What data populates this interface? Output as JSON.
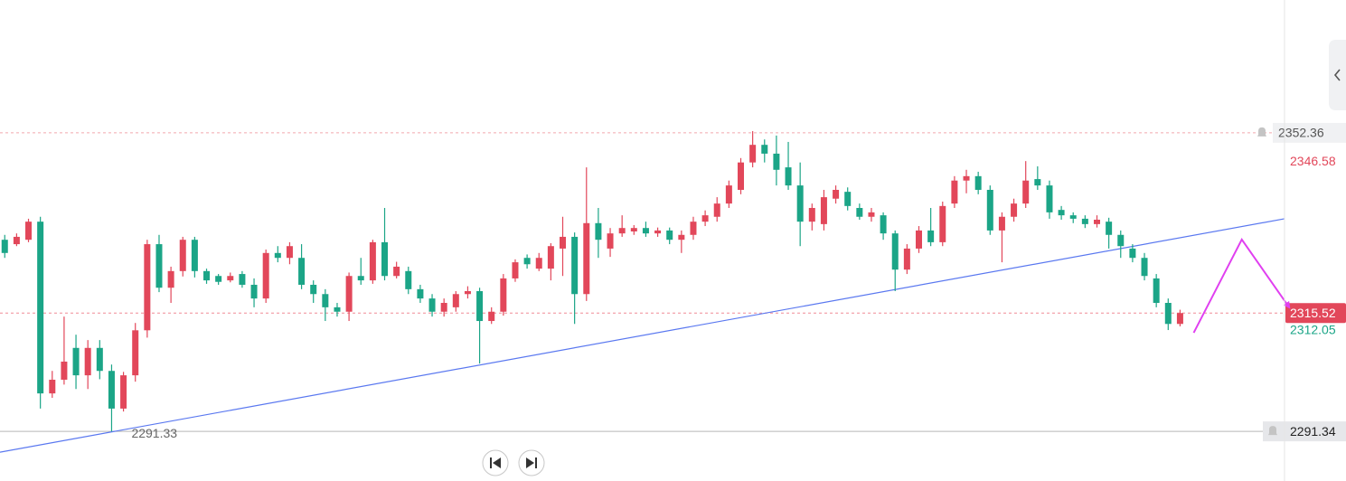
{
  "chart_data": {
    "type": "candlestick",
    "ylim": [
      2281.2,
      2379.5
    ],
    "xlim": [
      -0.4,
      107.8
    ],
    "up_color": "#e2475a",
    "down_color": "#1ba587",
    "open": [
      2330.5,
      2329.6,
      2330.5,
      2334.2,
      2299.1,
      2301.9,
      2308.4,
      2302.8,
      2308.4,
      2303.7,
      2296.0,
      2302.8,
      2312.0,
      2329.6,
      2320.7,
      2324.1,
      2330.5,
      2324.1,
      2323.1,
      2322.2,
      2323.5,
      2321.3,
      2318.5,
      2327.8,
      2326.8,
      2326.8,
      2321.3,
      2319.4,
      2316.7,
      2315.8,
      2323.1,
      2322.2,
      2330.0,
      2323.1,
      2324.1,
      2320.4,
      2318.5,
      2315.8,
      2316.7,
      2319.4,
      2320.0,
      2313.9,
      2315.8,
      2322.6,
      2326.8,
      2324.6,
      2324.6,
      2328.7,
      2331.1,
      2319.4,
      2333.9,
      2328.7,
      2331.8,
      2332.2,
      2332.9,
      2331.8,
      2332.4,
      2330.5,
      2331.5,
      2334.2,
      2335.2,
      2337.9,
      2340.7,
      2346.3,
      2349.9,
      2348.1,
      2345.3,
      2341.6,
      2334.2,
      2333.7,
      2338.9,
      2340.3,
      2337.0,
      2335.2,
      2335.5,
      2331.8,
      2324.4,
      2328.7,
      2332.4,
      2330.0,
      2337.9,
      2342.6,
      2343.5,
      2340.7,
      2332.4,
      2335.2,
      2337.9,
      2342.9,
      2341.6,
      2336.6,
      2335.5,
      2334.8,
      2333.7,
      2334.2,
      2331.5,
      2328.7,
      2326.8,
      2322.6,
      2317.6,
      2313.3
    ],
    "high": [
      2331.5,
      2331.8,
      2334.8,
      2335.2,
      2303.7,
      2314.8,
      2311.1,
      2310.0,
      2310.0,
      2305.0,
      2303.5,
      2313.5,
      2330.5,
      2331.5,
      2325.0,
      2331.1,
      2331.1,
      2324.6,
      2323.5,
      2323.8,
      2324.1,
      2322.6,
      2328.5,
      2329.2,
      2330.0,
      2329.6,
      2322.2,
      2320.4,
      2317.6,
      2323.8,
      2326.8,
      2330.5,
      2337.0,
      2326.0,
      2325.0,
      2321.3,
      2319.4,
      2318.5,
      2320.0,
      2321.0,
      2320.7,
      2316.7,
      2323.5,
      2326.5,
      2327.5,
      2327.8,
      2329.8,
      2335.2,
      2332.0,
      2345.3,
      2337.0,
      2332.9,
      2335.5,
      2333.5,
      2334.2,
      2333.0,
      2333.0,
      2332.4,
      2335.2,
      2336.5,
      2339.2,
      2342.6,
      2347.2,
      2352.7,
      2351.0,
      2351.8,
      2350.5,
      2346.3,
      2337.9,
      2340.7,
      2341.6,
      2341.2,
      2337.9,
      2337.0,
      2336.1,
      2332.4,
      2329.6,
      2333.3,
      2337.0,
      2338.3,
      2343.5,
      2344.8,
      2344.4,
      2341.6,
      2336.1,
      2338.9,
      2346.58,
      2345.5,
      2342.6,
      2337.4,
      2336.1,
      2335.5,
      2335.5,
      2335.0,
      2332.4,
      2329.6,
      2327.8,
      2323.5,
      2318.5,
      2316.2
    ],
    "low": [
      2326.8,
      2329.2,
      2330.0,
      2296.0,
      2298.2,
      2300.9,
      2300.0,
      2300.0,
      2302.0,
      2291.33,
      2295.4,
      2301.5,
      2310.5,
      2319.8,
      2317.6,
      2323.0,
      2322.8,
      2321.5,
      2321.3,
      2321.8,
      2320.7,
      2316.7,
      2317.6,
      2325.9,
      2325.5,
      2320.4,
      2317.6,
      2313.9,
      2314.8,
      2313.9,
      2321.3,
      2321.5,
      2322.2,
      2322.6,
      2319.4,
      2317.6,
      2314.8,
      2314.8,
      2315.8,
      2318.5,
      2305.2,
      2313.3,
      2315.0,
      2321.9,
      2324.6,
      2324.1,
      2322.2,
      2323.1,
      2313.3,
      2318.0,
      2326.8,
      2327.0,
      2331.1,
      2331.5,
      2331.1,
      2331.1,
      2329.6,
      2327.8,
      2330.5,
      2333.3,
      2334.2,
      2337.0,
      2339.8,
      2345.3,
      2346.3,
      2341.6,
      2340.7,
      2329.2,
      2332.4,
      2332.4,
      2337.9,
      2336.5,
      2334.6,
      2334.2,
      2330.5,
      2320.0,
      2323.5,
      2327.8,
      2329.2,
      2329.2,
      2337.0,
      2340.0,
      2339.8,
      2331.5,
      2325.9,
      2334.2,
      2337.0,
      2340.7,
      2334.8,
      2334.6,
      2333.9,
      2332.9,
      2333.0,
      2328.7,
      2326.8,
      2325.9,
      2322.2,
      2316.7,
      2312.05,
      2312.8
    ],
    "close": [
      2327.8,
      2331.1,
      2334.2,
      2299.1,
      2301.9,
      2305.6,
      2302.8,
      2308.4,
      2303.7,
      2296.0,
      2302.8,
      2312.0,
      2329.6,
      2320.7,
      2324.1,
      2330.5,
      2324.1,
      2322.2,
      2321.9,
      2323.1,
      2321.3,
      2318.5,
      2327.8,
      2326.8,
      2329.2,
      2321.3,
      2319.4,
      2316.7,
      2315.8,
      2323.1,
      2322.2,
      2330.0,
      2323.1,
      2325.0,
      2320.4,
      2318.5,
      2315.8,
      2317.6,
      2319.4,
      2320.0,
      2313.9,
      2315.8,
      2322.6,
      2325.9,
      2325.5,
      2326.8,
      2329.2,
      2331.1,
      2319.4,
      2333.9,
      2330.5,
      2331.8,
      2332.9,
      2332.9,
      2331.8,
      2332.4,
      2330.5,
      2331.5,
      2334.2,
      2335.5,
      2337.9,
      2341.6,
      2346.3,
      2349.9,
      2348.1,
      2344.8,
      2341.6,
      2334.2,
      2337.0,
      2339.2,
      2340.7,
      2337.4,
      2335.2,
      2336.1,
      2331.8,
      2324.4,
      2328.7,
      2332.4,
      2330.0,
      2337.4,
      2342.6,
      2343.5,
      2340.7,
      2332.4,
      2335.2,
      2337.9,
      2342.6,
      2341.6,
      2336.1,
      2335.5,
      2334.8,
      2333.7,
      2334.6,
      2331.5,
      2329.2,
      2326.8,
      2323.1,
      2317.6,
      2313.3,
      2315.52
    ],
    "price_lines": [
      {
        "value": 2352.36,
        "style": "dashed",
        "color": "#f2a6ae",
        "alert": true
      },
      {
        "value": 2315.52,
        "style": "dashed",
        "color": "#f08a96",
        "badge_color": "#e2475a"
      },
      {
        "value": 2291.34,
        "style": "solid",
        "color": "#b8b8b8",
        "alert": true
      }
    ],
    "axis_labels": [
      {
        "value": 2346.58,
        "color": "#e2475a"
      },
      {
        "value": 2312.05,
        "color": "#1ba587"
      }
    ],
    "low_marker": {
      "index": 9,
      "value": 2291.33
    },
    "trendline": {
      "color": "#5a78f0",
      "x": [
        -0.4,
        107.8
      ],
      "y": [
        2287.09,
        2334.79
      ]
    },
    "projection": {
      "color": "#e040f0",
      "x": [
        100.15,
        104.2,
        108.2
      ],
      "y": [
        2311.49,
        2330.54,
        2316.67
      ]
    }
  }
}
